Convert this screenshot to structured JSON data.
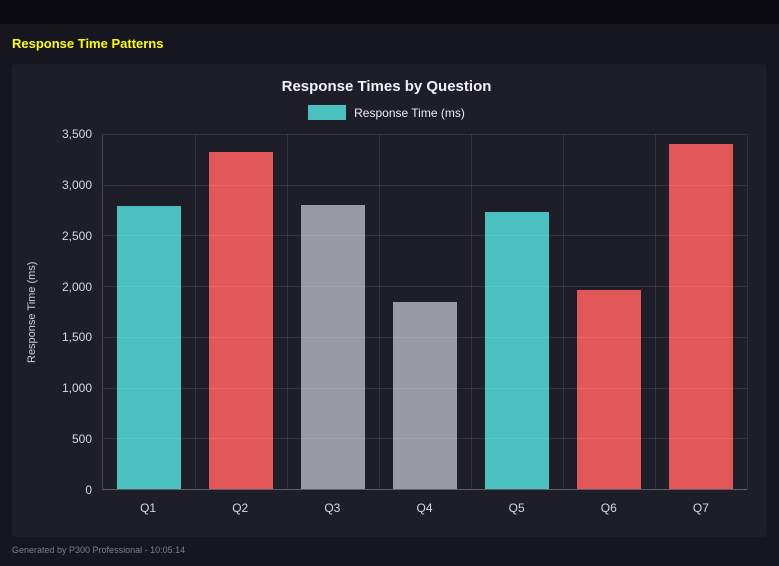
{
  "page": {
    "title": "Response Time Patterns"
  },
  "footer": {
    "text": "Generated by P300 Professional - 10:05:14"
  },
  "colors": {
    "background": "#16161f",
    "top_strip": "#0a0a10",
    "panel": "#1e1e29",
    "accent_yellow": "#ffff00",
    "teal": "#4bc0c0",
    "red": "#e25757",
    "gray": "#9a9aa2",
    "grid": "rgba(255,255,255,0.09)"
  },
  "chart_data": {
    "type": "bar",
    "title": "Response Times by Question",
    "legend": "Response Time (ms)",
    "ylabel": "Response Time (ms)",
    "xlabel": "",
    "categories": [
      "Q1",
      "Q2",
      "Q3",
      "Q4",
      "Q5",
      "Q6",
      "Q7"
    ],
    "values": [
      2790,
      3320,
      2800,
      1840,
      2730,
      1960,
      3400
    ],
    "bar_colors": [
      "teal",
      "red",
      "gray",
      "gray",
      "teal",
      "red",
      "red"
    ],
    "ylim": [
      0,
      3500
    ],
    "yticks": [
      0,
      500,
      1000,
      1500,
      2000,
      2500,
      3000,
      3500
    ],
    "ytick_labels": [
      "0",
      "500",
      "1,000",
      "1,500",
      "2,000",
      "2,500",
      "3,000",
      "3,500"
    ],
    "grid": true,
    "legend_position": "top"
  }
}
